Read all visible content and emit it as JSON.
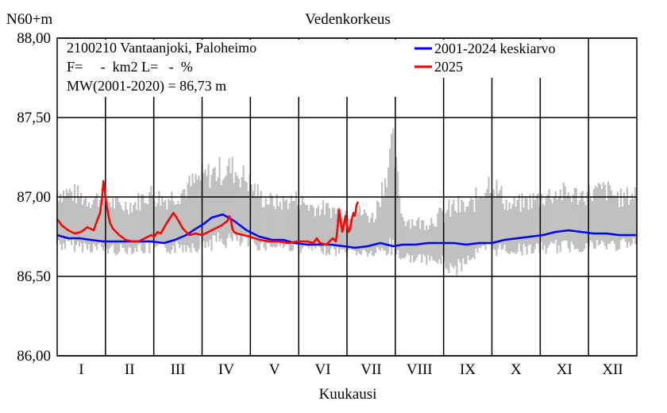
{
  "header": {
    "unit_label": "N60+m",
    "title": "Vedenkorkeus"
  },
  "info": {
    "station": "2100210 Vantaanjoki, Paloheimo",
    "area_line": "F=     -  km2 L=   -  %",
    "mw_line": "MW(2001-2020) = 86,73 m"
  },
  "legend": {
    "position": "top-right",
    "items": [
      {
        "label": "2001-2024 keskiarvo",
        "color": "#0000ff"
      },
      {
        "label": "2025",
        "color": "#ff0000"
      }
    ]
  },
  "colors": {
    "range_band": "#c0c0c0",
    "mean_line": "#0000ff",
    "year_line": "#ff0000"
  },
  "chart_data": {
    "type": "line",
    "title": "Vedenkorkeus",
    "xlabel": "Kuukausi",
    "ylabel": "N60+m",
    "xlim": [
      1,
      365
    ],
    "ylim": [
      86.0,
      88.0
    ],
    "grid": true,
    "yticks": [
      {
        "value": 86.0,
        "label": "86,00"
      },
      {
        "value": 86.5,
        "label": "86,50"
      },
      {
        "value": 87.0,
        "label": "87,00"
      },
      {
        "value": 87.5,
        "label": "87,50"
      },
      {
        "value": 88.0,
        "label": "88,00"
      }
    ],
    "months": [
      "I",
      "II",
      "III",
      "IV",
      "V",
      "VI",
      "VII",
      "VIII",
      "IX",
      "X",
      "XI",
      "XII"
    ],
    "series": [
      {
        "name": "2001-2024 keskiarvo",
        "color": "#0000ff",
        "x": [
          1,
          8,
          15,
          22,
          30,
          38,
          45,
          52,
          60,
          68,
          75,
          82,
          88,
          93,
          98,
          105,
          112,
          120,
          128,
          136,
          143,
          150,
          158,
          166,
          173,
          181,
          188,
          196,
          204,
          212,
          218,
          226,
          234,
          242,
          250,
          258,
          266,
          274,
          282,
          290,
          298,
          306,
          314,
          322,
          330,
          338,
          346,
          354,
          360,
          365
        ],
        "y": [
          86.76,
          86.74,
          86.74,
          86.73,
          86.72,
          86.72,
          86.72,
          86.72,
          86.72,
          86.71,
          86.73,
          86.76,
          86.8,
          86.83,
          86.87,
          86.89,
          86.85,
          86.79,
          86.75,
          86.73,
          86.73,
          86.71,
          86.7,
          86.7,
          86.7,
          86.69,
          86.68,
          86.69,
          86.71,
          86.69,
          86.7,
          86.7,
          86.71,
          86.71,
          86.71,
          86.7,
          86.71,
          86.71,
          86.73,
          86.74,
          86.75,
          86.76,
          86.78,
          86.79,
          86.78,
          86.77,
          86.77,
          86.76,
          86.76,
          86.76
        ]
      },
      {
        "name": "2025",
        "color": "#ff0000",
        "x": [
          1,
          4,
          8,
          12,
          16,
          20,
          24,
          26,
          28,
          29,
          30,
          32,
          34,
          36,
          40,
          44,
          48,
          52,
          56,
          60,
          62,
          64,
          66,
          70,
          72,
          74,
          76,
          80,
          84,
          88,
          92,
          96,
          100,
          104,
          108,
          109,
          110,
          111,
          112,
          114,
          118,
          122,
          128,
          134,
          140,
          146,
          152,
          158,
          162,
          164,
          166,
          170,
          174,
          176,
          177,
          178,
          179,
          180,
          181,
          182,
          183,
          184,
          185,
          186,
          187,
          188,
          189,
          190
        ],
        "y": [
          86.86,
          86.82,
          86.79,
          86.77,
          86.78,
          86.81,
          86.79,
          86.85,
          86.9,
          86.98,
          87.1,
          86.95,
          86.84,
          86.8,
          86.76,
          86.73,
          86.72,
          86.72,
          86.74,
          86.76,
          86.75,
          86.78,
          86.77,
          86.84,
          86.87,
          86.9,
          86.87,
          86.8,
          86.76,
          86.77,
          86.76,
          86.78,
          86.8,
          86.82,
          86.85,
          86.88,
          86.86,
          86.8,
          86.78,
          86.77,
          86.76,
          86.75,
          86.73,
          86.72,
          86.72,
          86.71,
          86.72,
          86.72,
          86.71,
          86.74,
          86.71,
          86.7,
          86.74,
          86.72,
          86.8,
          86.92,
          86.85,
          86.78,
          86.82,
          86.88,
          86.82,
          86.78,
          86.8,
          86.86,
          86.9,
          86.88,
          86.95,
          86.97
        ]
      },
      {
        "name": "",
        "kind": "range-band",
        "color": "#c0c0c0",
        "x": [
          1,
          10,
          20,
          31,
          40,
          50,
          59,
          68,
          78,
          90,
          100,
          110,
          120,
          130,
          140,
          151,
          160,
          170,
          181,
          190,
          200,
          212,
          218,
          230,
          243,
          250,
          260,
          273,
          285,
          300,
          315,
          330,
          345,
          356,
          365
        ],
        "min": [
          86.66,
          86.65,
          86.65,
          86.63,
          86.63,
          86.64,
          86.63,
          86.63,
          86.64,
          86.65,
          86.66,
          86.67,
          86.66,
          86.66,
          86.66,
          86.65,
          86.64,
          86.63,
          86.62,
          86.62,
          86.61,
          86.6,
          86.59,
          86.58,
          86.55,
          86.48,
          86.58,
          86.62,
          86.63,
          86.63,
          86.64,
          86.65,
          86.65,
          86.66,
          86.66
        ],
        "max": [
          87.1,
          87.1,
          87.05,
          87.06,
          87.0,
          87.02,
          87.1,
          87.05,
          87.1,
          87.2,
          87.25,
          87.28,
          87.2,
          87.05,
          87.02,
          87.05,
          87.0,
          86.98,
          86.97,
          86.96,
          86.92,
          87.45,
          86.92,
          86.88,
          86.95,
          87.02,
          87.0,
          87.2,
          87.0,
          87.05,
          87.1,
          87.08,
          87.12,
          87.05,
          87.1
        ]
      }
    ]
  }
}
